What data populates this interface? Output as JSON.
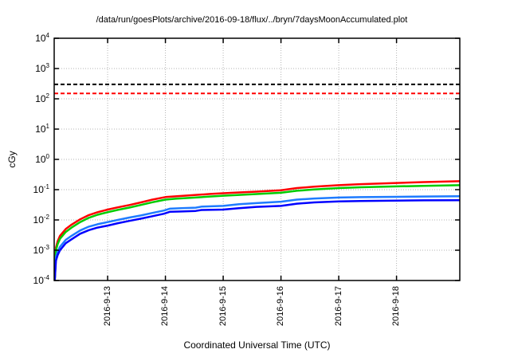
{
  "chart_data": {
    "type": "line",
    "title": "/data/run/goesPlots/archive/2016-09-18/flux/../bryn/7daysMoonAccumulated.plot",
    "xlabel": "Coordinated Universal Time (UTC)",
    "ylabel": "cGy",
    "y_scale": "log",
    "ylim": [
      0.0001,
      10000
    ],
    "y_tick_exponents": [
      4,
      3,
      2,
      1,
      0,
      -1,
      -2,
      -3,
      -4
    ],
    "x_range_days": [
      0,
      7.02
    ],
    "x_ticks": [
      {
        "label": "2016-9-13",
        "t": 0.925
      },
      {
        "label": "2016-9-14",
        "t": 1.925
      },
      {
        "label": "2016-9-15",
        "t": 2.925
      },
      {
        "label": "2016-9-16",
        "t": 3.925
      },
      {
        "label": "2016-9-17",
        "t": 4.925
      },
      {
        "label": "2016-9-18",
        "t": 5.925
      }
    ],
    "grid": true,
    "grid_color": "#b3b3b3",
    "legend": "none",
    "thresholds": [
      {
        "name": "upper-dose-limit",
        "value": 300,
        "color": "#000000",
        "style": "dashed"
      },
      {
        "name": "lower-dose-limit",
        "value": 150,
        "color": "#ff0000",
        "style": "dashed"
      }
    ],
    "series": [
      {
        "name": "red",
        "color": "#ff0000",
        "points": [
          [
            0.01,
            0.0001
          ],
          [
            0.03,
            0.0012
          ],
          [
            0.06,
            0.002
          ],
          [
            0.1,
            0.003
          ],
          [
            0.2,
            0.005
          ],
          [
            0.3,
            0.007
          ],
          [
            0.45,
            0.0105
          ],
          [
            0.6,
            0.0145
          ],
          [
            0.75,
            0.018
          ],
          [
            0.925,
            0.022
          ],
          [
            1.1,
            0.026
          ],
          [
            1.3,
            0.031
          ],
          [
            1.5,
            0.038
          ],
          [
            1.7,
            0.047
          ],
          [
            1.925,
            0.057
          ],
          [
            2.1,
            0.06
          ],
          [
            2.3,
            0.064
          ],
          [
            2.5,
            0.068
          ],
          [
            2.7,
            0.072
          ],
          [
            2.925,
            0.076
          ],
          [
            3.2,
            0.081
          ],
          [
            3.5,
            0.086
          ],
          [
            3.925,
            0.095
          ],
          [
            4.2,
            0.113
          ],
          [
            4.5,
            0.125
          ],
          [
            4.925,
            0.14
          ],
          [
            5.3,
            0.152
          ],
          [
            5.925,
            0.166
          ],
          [
            6.4,
            0.178
          ],
          [
            7.02,
            0.19
          ]
        ]
      },
      {
        "name": "green",
        "color": "#00cc00",
        "points": [
          [
            0.01,
            0.0001
          ],
          [
            0.03,
            0.001
          ],
          [
            0.06,
            0.0016
          ],
          [
            0.1,
            0.0024
          ],
          [
            0.2,
            0.004
          ],
          [
            0.3,
            0.0056
          ],
          [
            0.45,
            0.0085
          ],
          [
            0.6,
            0.0118
          ],
          [
            0.75,
            0.0148
          ],
          [
            0.925,
            0.018
          ],
          [
            1.1,
            0.0215
          ],
          [
            1.3,
            0.0256
          ],
          [
            1.5,
            0.0312
          ],
          [
            1.7,
            0.0385
          ],
          [
            1.925,
            0.047
          ],
          [
            2.1,
            0.05
          ],
          [
            2.3,
            0.053
          ],
          [
            2.5,
            0.056
          ],
          [
            2.7,
            0.0595
          ],
          [
            2.925,
            0.063
          ],
          [
            3.2,
            0.067
          ],
          [
            3.5,
            0.0715
          ],
          [
            3.925,
            0.079
          ],
          [
            4.2,
            0.092
          ],
          [
            4.5,
            0.101
          ],
          [
            4.925,
            0.113
          ],
          [
            5.3,
            0.12
          ],
          [
            5.925,
            0.128
          ],
          [
            6.4,
            0.134
          ],
          [
            7.02,
            0.14
          ]
        ]
      },
      {
        "name": "light-blue",
        "color": "#1e7bff",
        "points": [
          [
            0.01,
            0.0001
          ],
          [
            0.03,
            0.0006
          ],
          [
            0.06,
            0.0009
          ],
          [
            0.1,
            0.0013
          ],
          [
            0.2,
            0.0022
          ],
          [
            0.3,
            0.003
          ],
          [
            0.45,
            0.0045
          ],
          [
            0.6,
            0.006
          ],
          [
            0.75,
            0.0072
          ],
          [
            0.925,
            0.0085
          ],
          [
            1.1,
            0.01
          ],
          [
            1.3,
            0.012
          ],
          [
            1.5,
            0.014
          ],
          [
            1.7,
            0.017
          ],
          [
            1.9,
            0.0205
          ],
          [
            2.0,
            0.0235
          ],
          [
            2.2,
            0.0245
          ],
          [
            2.45,
            0.0255
          ],
          [
            2.55,
            0.0275
          ],
          [
            2.925,
            0.029
          ],
          [
            3.2,
            0.033
          ],
          [
            3.5,
            0.036
          ],
          [
            3.925,
            0.04
          ],
          [
            4.2,
            0.047
          ],
          [
            4.5,
            0.051
          ],
          [
            4.925,
            0.055
          ],
          [
            5.3,
            0.0565
          ],
          [
            5.925,
            0.058
          ],
          [
            6.4,
            0.0595
          ],
          [
            7.02,
            0.061
          ]
        ]
      },
      {
        "name": "blue",
        "color": "#0000ff",
        "points": [
          [
            0.01,
            0.0001
          ],
          [
            0.03,
            0.00045
          ],
          [
            0.06,
            0.0007
          ],
          [
            0.1,
            0.001
          ],
          [
            0.2,
            0.0017
          ],
          [
            0.3,
            0.0023
          ],
          [
            0.45,
            0.0035
          ],
          [
            0.6,
            0.0046
          ],
          [
            0.75,
            0.0056
          ],
          [
            0.925,
            0.0065
          ],
          [
            1.1,
            0.0078
          ],
          [
            1.3,
            0.0093
          ],
          [
            1.5,
            0.011
          ],
          [
            1.7,
            0.0133
          ],
          [
            1.9,
            0.016
          ],
          [
            2.0,
            0.0185
          ],
          [
            2.2,
            0.019
          ],
          [
            2.45,
            0.0198
          ],
          [
            2.55,
            0.0213
          ],
          [
            2.925,
            0.022
          ],
          [
            3.2,
            0.0245
          ],
          [
            3.5,
            0.027
          ],
          [
            3.925,
            0.029
          ],
          [
            4.2,
            0.0345
          ],
          [
            4.5,
            0.038
          ],
          [
            4.925,
            0.041
          ],
          [
            5.3,
            0.042
          ],
          [
            5.925,
            0.0435
          ],
          [
            6.4,
            0.0445
          ],
          [
            7.02,
            0.045
          ]
        ]
      }
    ]
  }
}
